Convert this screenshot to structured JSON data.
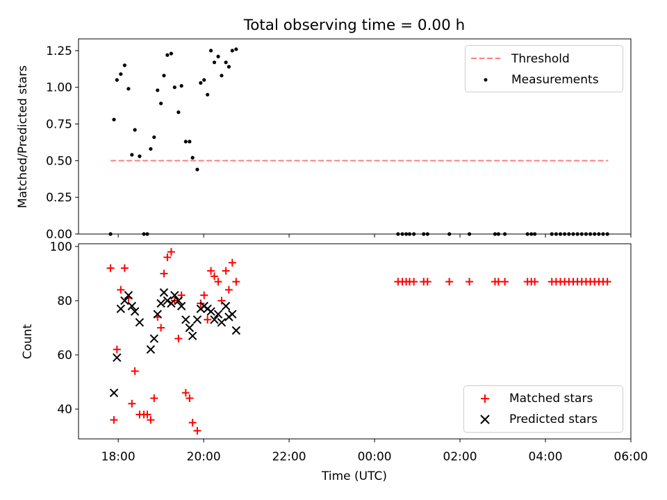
{
  "chart_data": {
    "title": "Total observing time = 0.00 h",
    "xlabel": "Time (UTC)",
    "x_unit": "hours",
    "xticks": [
      {
        "value": 18,
        "label": "18:00"
      },
      {
        "value": 20,
        "label": "20:00"
      },
      {
        "value": 22,
        "label": "22:00"
      },
      {
        "value": 24,
        "label": "00:00"
      },
      {
        "value": 26,
        "label": "02:00"
      },
      {
        "value": 28,
        "label": "04:00"
      },
      {
        "value": 30,
        "label": "06:00"
      }
    ],
    "xlim": [
      17.07,
      30.0
    ],
    "colors": {
      "threshold": "#ff7f7f",
      "measurements": "#000000",
      "matched": "#ff0000",
      "predicted": "#000000"
    },
    "panels": [
      {
        "type": "scatter",
        "ylabel": "Matched/Predicted stars",
        "ylim": [
          0.0,
          1.33
        ],
        "yticks": [
          {
            "value": 0.0,
            "label": "0.00"
          },
          {
            "value": 0.25,
            "label": "0.25"
          },
          {
            "value": 0.5,
            "label": "0.50"
          },
          {
            "value": 0.75,
            "label": "0.75"
          },
          {
            "value": 1.0,
            "label": "1.00"
          },
          {
            "value": 1.25,
            "label": "1.25"
          }
        ],
        "legend": {
          "placement": "top-right",
          "entries": [
            {
              "label": "Threshold",
              "marker": "dashed-line",
              "color": "#ff7f7f"
            },
            {
              "label": "Measurements",
              "marker": "dot",
              "color": "#000000"
            }
          ]
        },
        "threshold": {
          "label": "Threshold",
          "y": 0.5,
          "x_start": 17.82,
          "x_end": 29.47
        },
        "series": [
          {
            "name": "Measurements",
            "points": [
              [
                17.82,
                0.0
              ],
              [
                17.9,
                0.78
              ],
              [
                17.97,
                1.05
              ],
              [
                18.06,
                1.09
              ],
              [
                18.15,
                1.15
              ],
              [
                18.24,
                0.99
              ],
              [
                18.32,
                0.54
              ],
              [
                18.39,
                0.71
              ],
              [
                18.5,
                0.53
              ],
              [
                18.6,
                0.0
              ],
              [
                18.68,
                0.0
              ],
              [
                18.76,
                0.58
              ],
              [
                18.84,
                0.66
              ],
              [
                18.92,
                0.98
              ],
              [
                19.0,
                0.89
              ],
              [
                19.07,
                1.08
              ],
              [
                19.15,
                1.22
              ],
              [
                19.24,
                1.23
              ],
              [
                19.32,
                1.0
              ],
              [
                19.41,
                0.83
              ],
              [
                19.48,
                1.01
              ],
              [
                19.58,
                0.63
              ],
              [
                19.67,
                0.63
              ],
              [
                19.74,
                0.52
              ],
              [
                19.85,
                0.44
              ],
              [
                19.93,
                1.03
              ],
              [
                20.01,
                1.05
              ],
              [
                20.09,
                0.95
              ],
              [
                20.17,
                1.25
              ],
              [
                20.25,
                1.17
              ],
              [
                20.34,
                1.21
              ],
              [
                20.42,
                1.08
              ],
              [
                20.52,
                1.17
              ],
              [
                20.59,
                1.14
              ],
              [
                20.67,
                1.25
              ],
              [
                20.76,
                1.26
              ],
              [
                24.55,
                0.0
              ],
              [
                24.65,
                0.0
              ],
              [
                24.74,
                0.0
              ],
              [
                24.82,
                0.0
              ],
              [
                24.92,
                0.0
              ],
              [
                25.15,
                0.0
              ],
              [
                25.24,
                0.0
              ],
              [
                25.75,
                0.0
              ],
              [
                26.22,
                0.0
              ],
              [
                26.82,
                0.0
              ],
              [
                26.9,
                0.0
              ],
              [
                27.05,
                0.0
              ],
              [
                27.58,
                0.0
              ],
              [
                27.67,
                0.0
              ],
              [
                27.75,
                0.0
              ],
              [
                28.15,
                0.0
              ],
              [
                28.25,
                0.0
              ],
              [
                28.35,
                0.0
              ],
              [
                28.45,
                0.0
              ],
              [
                28.55,
                0.0
              ],
              [
                28.65,
                0.0
              ],
              [
                28.75,
                0.0
              ],
              [
                28.85,
                0.0
              ],
              [
                28.95,
                0.0
              ],
              [
                29.05,
                0.0
              ],
              [
                29.15,
                0.0
              ],
              [
                29.25,
                0.0
              ],
              [
                29.35,
                0.0
              ],
              [
                29.45,
                0.0
              ]
            ]
          }
        ]
      },
      {
        "type": "scatter",
        "ylabel": "Count",
        "ylim": [
          29,
          101
        ],
        "yticks": [
          {
            "value": 40,
            "label": "40"
          },
          {
            "value": 60,
            "label": "60"
          },
          {
            "value": 80,
            "label": "80"
          },
          {
            "value": 100,
            "label": "100"
          }
        ],
        "legend": {
          "placement": "bottom-right",
          "entries": [
            {
              "label": "Matched stars",
              "marker": "plus",
              "color": "#ff0000"
            },
            {
              "label": "Predicted stars",
              "marker": "x",
              "color": "#000000"
            }
          ]
        },
        "series": [
          {
            "name": "Matched stars",
            "marker": "plus",
            "points": [
              [
                17.82,
                92
              ],
              [
                17.9,
                36
              ],
              [
                17.97,
                62
              ],
              [
                18.06,
                84
              ],
              [
                18.15,
                92
              ],
              [
                18.24,
                81
              ],
              [
                18.32,
                42
              ],
              [
                18.39,
                54
              ],
              [
                18.5,
                38
              ],
              [
                18.6,
                38
              ],
              [
                18.68,
                38
              ],
              [
                18.76,
                36
              ],
              [
                18.84,
                44
              ],
              [
                18.92,
                74
              ],
              [
                19.0,
                70
              ],
              [
                19.07,
                90
              ],
              [
                19.15,
                96
              ],
              [
                19.24,
                98
              ],
              [
                19.32,
                80
              ],
              [
                19.41,
                66
              ],
              [
                19.48,
                82
              ],
              [
                19.58,
                46
              ],
              [
                19.67,
                44
              ],
              [
                19.74,
                35
              ],
              [
                19.85,
                32
              ],
              [
                19.93,
                79
              ],
              [
                20.01,
                82
              ],
              [
                20.09,
                73
              ],
              [
                20.17,
                91
              ],
              [
                20.25,
                89
              ],
              [
                20.34,
                87
              ],
              [
                20.42,
                80
              ],
              [
                20.52,
                91
              ],
              [
                20.59,
                84
              ],
              [
                20.67,
                94
              ],
              [
                20.76,
                87
              ],
              [
                24.55,
                87
              ],
              [
                24.65,
                87
              ],
              [
                24.74,
                87
              ],
              [
                24.82,
                87
              ],
              [
                24.92,
                87
              ],
              [
                25.15,
                87
              ],
              [
                25.24,
                87
              ],
              [
                25.75,
                87
              ],
              [
                26.22,
                87
              ],
              [
                26.82,
                87
              ],
              [
                26.9,
                87
              ],
              [
                27.05,
                87
              ],
              [
                27.58,
                87
              ],
              [
                27.67,
                87
              ],
              [
                27.75,
                87
              ],
              [
                28.15,
                87
              ],
              [
                28.25,
                87
              ],
              [
                28.35,
                87
              ],
              [
                28.45,
                87
              ],
              [
                28.55,
                87
              ],
              [
                28.65,
                87
              ],
              [
                28.75,
                87
              ],
              [
                28.85,
                87
              ],
              [
                28.95,
                87
              ],
              [
                29.05,
                87
              ],
              [
                29.15,
                87
              ],
              [
                29.25,
                87
              ],
              [
                29.35,
                87
              ],
              [
                29.45,
                87
              ]
            ]
          },
          {
            "name": "Predicted stars",
            "marker": "x",
            "points": [
              [
                17.9,
                46
              ],
              [
                17.97,
                59
              ],
              [
                18.06,
                77
              ],
              [
                18.15,
                80
              ],
              [
                18.24,
                82
              ],
              [
                18.32,
                78
              ],
              [
                18.39,
                76
              ],
              [
                18.5,
                72
              ],
              [
                18.76,
                62
              ],
              [
                18.84,
                66
              ],
              [
                18.92,
                75
              ],
              [
                19.0,
                79
              ],
              [
                19.07,
                83
              ],
              [
                19.15,
                80
              ],
              [
                19.24,
                79
              ],
              [
                19.32,
                82
              ],
              [
                19.41,
                80
              ],
              [
                19.48,
                78
              ],
              [
                19.58,
                73
              ],
              [
                19.67,
                70
              ],
              [
                19.74,
                67
              ],
              [
                19.85,
                73
              ],
              [
                19.93,
                77
              ],
              [
                20.01,
                78
              ],
              [
                20.09,
                77
              ],
              [
                20.17,
                76
              ],
              [
                20.25,
                73
              ],
              [
                20.34,
                75
              ],
              [
                20.42,
                72
              ],
              [
                20.52,
                78
              ],
              [
                20.59,
                74
              ],
              [
                20.67,
                75
              ],
              [
                20.76,
                69
              ]
            ]
          }
        ]
      }
    ]
  }
}
